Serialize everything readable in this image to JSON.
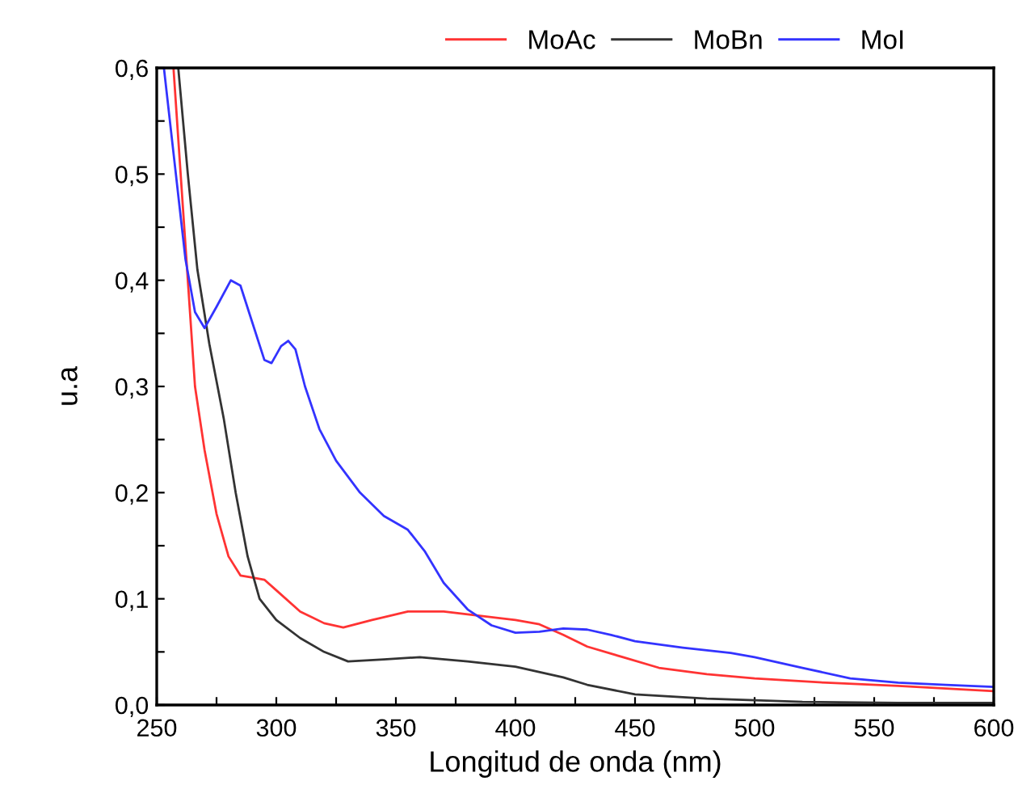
{
  "chart_data": {
    "type": "line",
    "xlabel": "Longitud de onda (nm)",
    "ylabel": "u.a",
    "legend": "top",
    "grid": false,
    "marker": "none",
    "line_style": "solid",
    "xlim": [
      250,
      600
    ],
    "ylim": [
      0,
      0.6
    ],
    "xticks": [
      250,
      {
        "value": 275,
        "label": null
      },
      300,
      {
        "value": 325,
        "label": null
      },
      350,
      {
        "value": 375,
        "label": null
      },
      400,
      {
        "value": 425,
        "label": null
      },
      450,
      {
        "value": 475,
        "label": null
      },
      500,
      {
        "value": 525,
        "label": null
      },
      550,
      {
        "value": 575,
        "label": null
      },
      600
    ],
    "yticks": [
      {
        "value": 0,
        "label": "0,0"
      },
      {
        "value": 0.05,
        "label": null
      },
      {
        "value": 0.1,
        "label": "0,1"
      },
      {
        "value": 0.15,
        "label": null
      },
      {
        "value": 0.2,
        "label": "0,2"
      },
      {
        "value": 0.25,
        "label": null
      },
      {
        "value": 0.3,
        "label": "0,3"
      },
      {
        "value": 0.35,
        "label": null
      },
      {
        "value": 0.4,
        "label": "0,4"
      },
      {
        "value": 0.45,
        "label": null
      },
      {
        "value": 0.5,
        "label": "0,5"
      },
      {
        "value": 0.55,
        "label": null
      },
      {
        "value": 0.6,
        "label": "0,6"
      }
    ],
    "series": [
      {
        "name": "MoAc",
        "color": "#ff3333",
        "x": [
          257,
          260,
          263,
          266,
          270,
          275,
          280,
          285,
          290,
          295,
          300,
          310,
          320,
          328,
          340,
          355,
          370,
          385,
          400,
          410,
          420,
          430,
          445,
          460,
          480,
          500,
          530,
          560,
          600
        ],
        "values": [
          0.6,
          0.5,
          0.4,
          0.3,
          0.24,
          0.18,
          0.14,
          0.122,
          0.12,
          0.118,
          0.108,
          0.088,
          0.077,
          0.073,
          0.08,
          0.088,
          0.088,
          0.084,
          0.08,
          0.076,
          0.066,
          0.055,
          0.045,
          0.035,
          0.029,
          0.025,
          0.021,
          0.018,
          0.013
        ]
      },
      {
        "name": "MoBn",
        "color": "#333333",
        "x": [
          259,
          263,
          267,
          272,
          278,
          283,
          288,
          293,
          300,
          310,
          320,
          330,
          345,
          360,
          380,
          400,
          420,
          430,
          450,
          480,
          520,
          560,
          600
        ],
        "values": [
          0.6,
          0.5,
          0.41,
          0.34,
          0.27,
          0.2,
          0.14,
          0.1,
          0.08,
          0.063,
          0.05,
          0.041,
          0.043,
          0.045,
          0.041,
          0.036,
          0.026,
          0.019,
          0.01,
          0.006,
          0.003,
          0.002,
          0.002
        ]
      },
      {
        "name": "MoI",
        "color": "#3333ff",
        "x": [
          253,
          258,
          262,
          266,
          270,
          275,
          281,
          285,
          290,
          295,
          298,
          302,
          305,
          308,
          312,
          318,
          325,
          335,
          345,
          355,
          362,
          370,
          380,
          390,
          400,
          410,
          420,
          430,
          440,
          450,
          470,
          490,
          500,
          520,
          540,
          560,
          580,
          600
        ],
        "values": [
          0.6,
          0.5,
          0.42,
          0.37,
          0.355,
          0.375,
          0.4,
          0.395,
          0.36,
          0.325,
          0.322,
          0.338,
          0.343,
          0.335,
          0.3,
          0.26,
          0.23,
          0.2,
          0.178,
          0.165,
          0.145,
          0.115,
          0.09,
          0.075,
          0.068,
          0.069,
          0.072,
          0.071,
          0.066,
          0.06,
          0.054,
          0.049,
          0.045,
          0.035,
          0.025,
          0.021,
          0.019,
          0.017
        ]
      }
    ]
  }
}
